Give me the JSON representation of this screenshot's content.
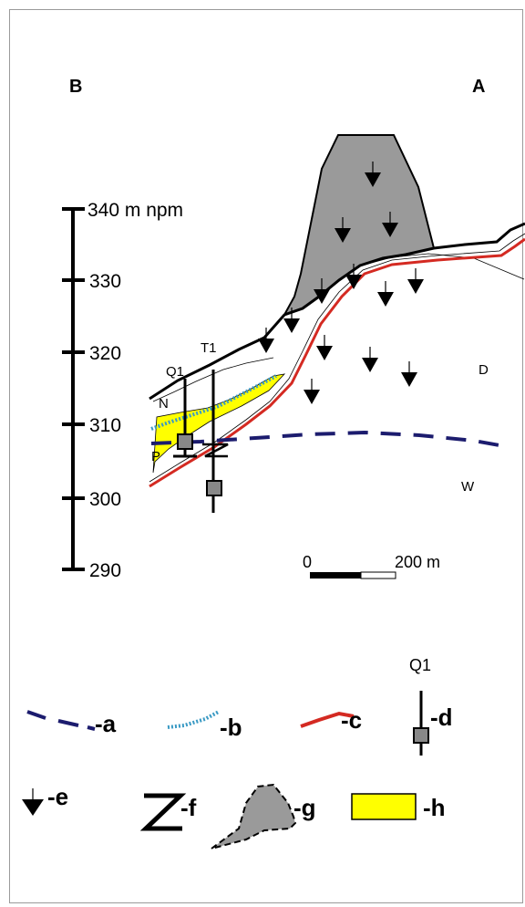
{
  "corner_labels": {
    "left": "B",
    "right": "A"
  },
  "scale_axis": {
    "ticks": [
      "340 m npm",
      "330",
      "320",
      "310",
      "300",
      "290"
    ]
  },
  "section_labels": {
    "well_q1": "Q1",
    "trench_t1": "T1",
    "layer_n": "N",
    "layer_p": "P",
    "zone_d": "D",
    "zone_w": "W"
  },
  "scale_bar": {
    "start": "0",
    "end": "200 m"
  },
  "legend": {
    "a": "-a",
    "b": "-b",
    "c": "-c",
    "d": "-d",
    "d_caption": "Q1",
    "e": "-e",
    "f": "-f",
    "g": "-g",
    "h": "-h"
  },
  "colors": {
    "line_a": "#1c1c6e",
    "line_b": "#3a9ac4",
    "line_c": "#d42a22",
    "fill_g": "#9a9a9a",
    "fill_h": "#ffff00"
  }
}
